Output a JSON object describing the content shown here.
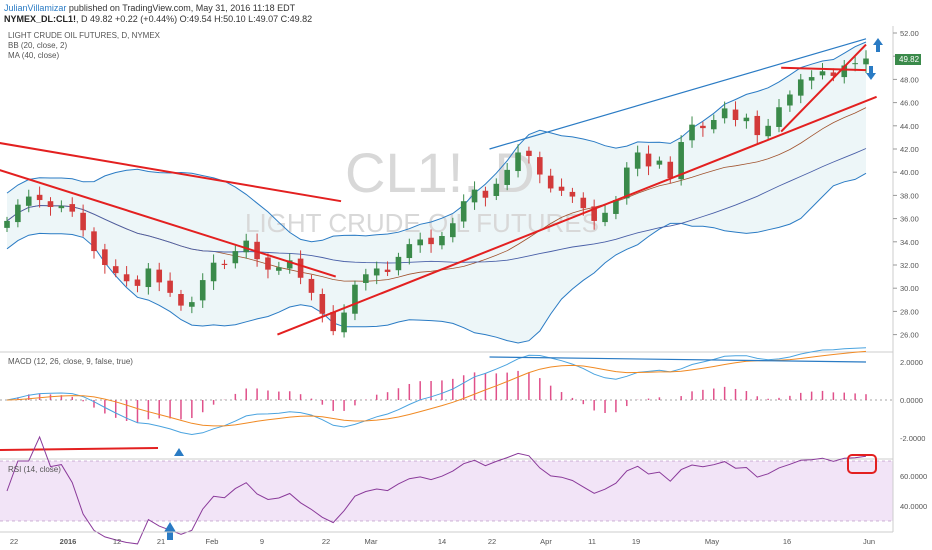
{
  "header": {
    "author": "JulianVillamizar",
    "published": " published on TradingView.com, May 31, 2016 11:18 EDT",
    "symbol": "NYMEX_DL:CL1!",
    "ohlc": ", D 49.82 +0.22 (+0.44%) O:49.54 H:50.10 L:49.07 C:49.82"
  },
  "main_pane": {
    "title": "LIGHT CRUDE OIL FUTURES, D, NYMEX",
    "indicator1": "BB (20, close, 2)",
    "indicator2": "MA (40, close)",
    "watermark_symbol": "CL1!, D",
    "watermark_name": "LIGHT CRUDE OIL FUTURES",
    "price_badge": "49.82",
    "y_ticks": [
      "52.00",
      "50.00",
      "48.00",
      "46.00",
      "44.00",
      "42.00",
      "40.00",
      "38.00",
      "36.00",
      "34.00",
      "32.00",
      "30.00",
      "28.00",
      "26.00"
    ]
  },
  "macd_pane": {
    "title": "MACD (12, 26, close, 9, false, true)",
    "y_ticks": [
      "2.0000",
      "0.0000",
      "-2.0000"
    ]
  },
  "rsi_pane": {
    "title": "RSI (14, close)",
    "y_ticks": [
      "60.0000",
      "40.0000"
    ]
  },
  "x_axis": [
    "22",
    "2016",
    "12",
    "21",
    "Feb",
    "9",
    "22",
    "Mar",
    "14",
    "22",
    "Apr",
    "11",
    "19",
    "May",
    "16",
    "Jun"
  ],
  "colors": {
    "up": "#3a8a4a",
    "down": "#d23a3a",
    "bollinger": "#2a7bc4",
    "trendline_red": "#e32020",
    "trendline_blue": "#2a7bc4",
    "macd_line": "#4aa3df",
    "signal_line": "#f08a24",
    "histogram": "#e0508a",
    "rsi_line": "#8a3a9a",
    "rsi_band": "#f2e4f7"
  },
  "chart_data": {
    "type": "candlestick",
    "symbol": "CL1!",
    "timeframe": "D",
    "x_range": [
      "2015-12-22",
      "2016-06-01"
    ],
    "ylim": [
      25,
      53
    ],
    "candles_close": [
      35.8,
      37.2,
      37.9,
      37.6,
      37.0,
      37.1,
      36.6,
      35.0,
      33.2,
      32.0,
      31.3,
      30.6,
      30.2,
      31.7,
      30.5,
      29.6,
      28.5,
      28.8,
      30.7,
      32.2,
      32.0,
      33.2,
      34.1,
      32.5,
      31.6,
      31.8,
      32.4,
      30.9,
      29.6,
      27.8,
      26.3,
      27.9,
      30.3,
      31.2,
      31.7,
      31.4,
      32.7,
      33.8,
      34.2,
      33.8,
      34.5,
      35.6,
      37.5,
      38.5,
      37.8,
      39.0,
      40.2,
      41.7,
      41.4,
      39.8,
      38.6,
      38.4,
      37.9,
      36.9,
      35.8,
      36.5,
      37.6,
      40.4,
      41.7,
      40.5,
      41.0,
      39.5,
      42.6,
      44.1,
      43.8,
      44.5,
      45.5,
      44.5,
      44.7,
      43.2,
      44.0,
      45.6,
      46.7,
      48.0,
      48.2,
      48.7,
      48.3,
      49.2,
      49.4,
      49.8
    ],
    "price_last": 49.82,
    "bollinger": {
      "period": 20,
      "stddev": 2
    },
    "ma": {
      "period": 40
    },
    "trendlines_main": [
      {
        "color": "red",
        "from": [
          "2015-12-08",
          43.5
        ],
        "to": [
          "2016-02-23",
          37.5
        ]
      },
      {
        "color": "red",
        "from": [
          "2015-12-15",
          41.0
        ],
        "to": [
          "2016-02-22",
          31.0
        ]
      },
      {
        "color": "red",
        "from": [
          "2016-02-11",
          26.0
        ],
        "to": [
          "2016-06-03",
          46.5
        ]
      },
      {
        "color": "red",
        "from": [
          "2016-05-16",
          43.5
        ],
        "to": [
          "2016-06-01",
          51.0
        ]
      },
      {
        "color": "red",
        "from": [
          "2016-05-16",
          49.0
        ],
        "to": [
          "2016-06-01",
          48.8
        ]
      },
      {
        "color": "blue",
        "from": [
          "2016-03-22",
          42.0
        ],
        "to": [
          "2016-06-01",
          51.5
        ]
      }
    ],
    "macd": {
      "fast": 12,
      "slow": 26,
      "signal": 9,
      "ylim": [
        -3.0,
        3.0
      ]
    },
    "rsi": {
      "period": 14,
      "ylim": [
        28,
        78
      ],
      "band": [
        30,
        70
      ]
    }
  }
}
